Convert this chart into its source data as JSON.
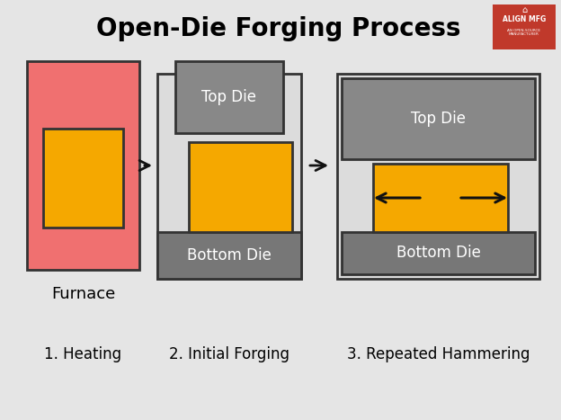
{
  "title": "Open-Die Forging Process",
  "background_color": "#e5e5e5",
  "title_fontsize": 20,
  "title_fontweight": "bold",
  "colors": {
    "furnace_body": "#f07070",
    "furnace_border": "#333333",
    "workpiece_orange": "#f5a800",
    "workpiece_border": "#333333",
    "die_gray": "#888888",
    "die_light_bg": "#dcdcdc",
    "die_border": "#333333",
    "bottom_die_dark": "#777777",
    "arrow_color": "#111111",
    "logo_bg": "#c0392b",
    "logo_text": "#ffffff",
    "white": "#ffffff"
  },
  "step_labels": [
    "1. Heating",
    "2. Initial Forging",
    "3. Repeated Hammering"
  ],
  "furnace_label": "Furnace",
  "die_labels": {
    "top": "Top Die",
    "bottom": "Bottom Die"
  },
  "label_fontsize": 12,
  "sublabel_fontsize": 13,
  "die_text_fontsize": 12
}
